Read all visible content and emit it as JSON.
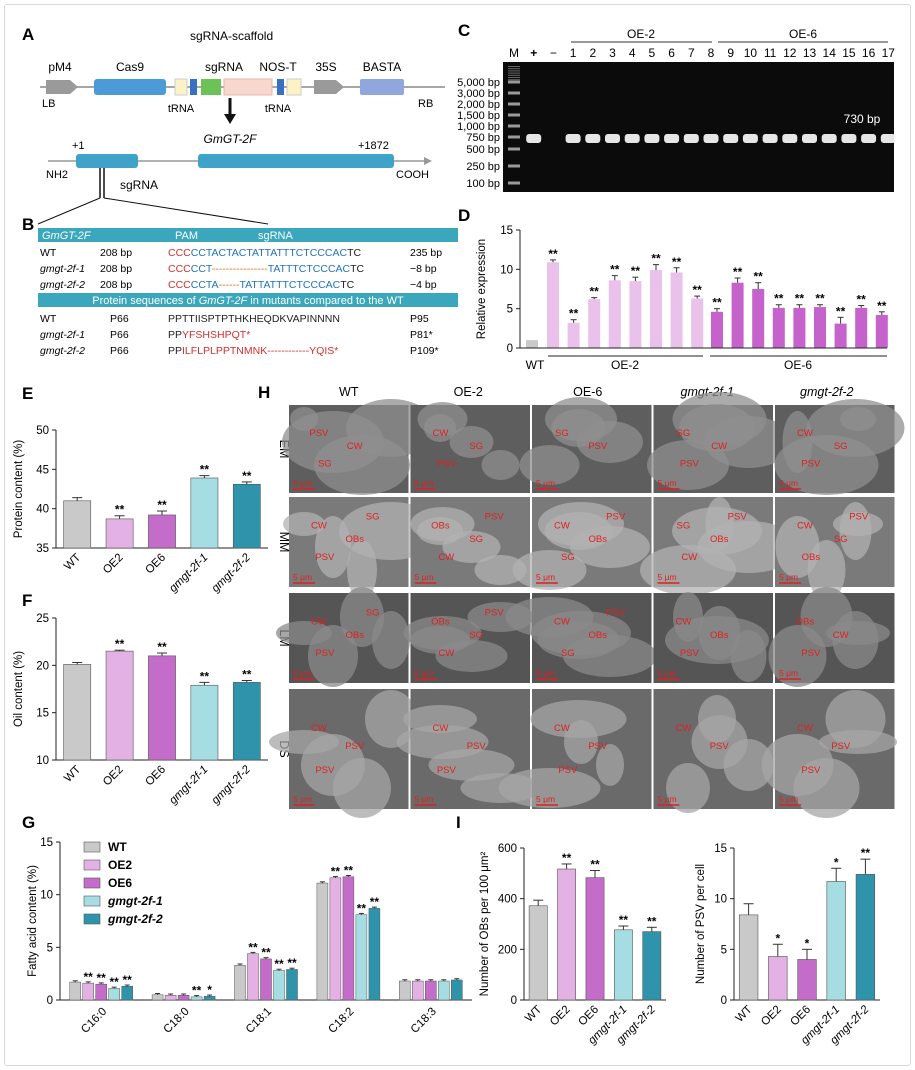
{
  "panelA": {
    "letter": "A",
    "scaffold": "sgRNA-scaffold",
    "labels": [
      "pM4",
      "Cas9",
      "sgRNA",
      "NOS-T",
      "35S",
      "BASTA"
    ],
    "lb": "LB",
    "rb": "RB",
    "trna1": "tRNA",
    "trna2": "tRNA",
    "gene": "GmGT-2F",
    "start": "+1",
    "end": "+1872",
    "nh2": "NH2",
    "cooh": "COOH",
    "sgrna": "sgRNA"
  },
  "panelB": {
    "letter": "B",
    "hdr_gene": "GmGT-2F",
    "hdr_pam": "PAM",
    "hdr_sgrna": "sgRNA",
    "rows": [
      {
        "name": "WT",
        "bp": "208 bp",
        "parts": [
          [
            "CCC",
            "#d32f2f"
          ],
          [
            "CCTACTACTATTATTTCTCCCAC",
            "#1e73be"
          ],
          [
            "TC",
            "#222"
          ]
        ],
        "end": "235 bp"
      },
      {
        "name": "gmgt-2f-1",
        "bp": "208 bp",
        "parts": [
          [
            "CCC",
            "#d32f2f"
          ],
          [
            "CCT",
            "#1e73be"
          ],
          [
            "----------------",
            "#e07020"
          ],
          [
            "TATTTCTCCCAC",
            "#1e73be"
          ],
          [
            "TC",
            "#222"
          ]
        ],
        "end": "−8 bp"
      },
      {
        "name": "gmgt-2f-2",
        "bp": "208 bp",
        "parts": [
          [
            "CCC",
            "#d32f2f"
          ],
          [
            "CCTA",
            "#1e73be"
          ],
          [
            "------",
            "#e07020"
          ],
          [
            "TATTATTTCTCCCAC",
            "#1e73be"
          ],
          [
            "TC",
            "#222"
          ]
        ],
        "end": "−4 bp"
      }
    ],
    "protein_header_pre": "Protein sequences of ",
    "protein_header_gene": "GmGT-2F",
    "protein_header_post": " in mutants compared to the WT",
    "prot_rows": [
      {
        "name": "WT",
        "start": "P66",
        "parts": [
          [
            "PPTTIISPTPTHKHEQDKVAPINNNN",
            "#222"
          ]
        ],
        "end": "P95"
      },
      {
        "name": "gmgt-2f-1",
        "start": "P66",
        "parts": [
          [
            "PP",
            "#222"
          ],
          [
            "YFSHSHPQT*",
            "#d32f2f"
          ]
        ],
        "end": "P81*"
      },
      {
        "name": "gmgt-2f-2",
        "start": "P66",
        "parts": [
          [
            "PP",
            "#222"
          ],
          [
            "ILFLPLPPTNMNK------------YQIS*",
            "#d32f2f"
          ]
        ],
        "end": "P109*"
      }
    ]
  },
  "panelC": {
    "letter": "C",
    "group1": "OE-2",
    "group2": "OE-6",
    "lanes": [
      "M",
      "+",
      "−",
      "1",
      "2",
      "3",
      "4",
      "5",
      "6",
      "7",
      "8",
      "9",
      "10",
      "11",
      "12",
      "13",
      "14",
      "15",
      "16",
      "17"
    ],
    "ladder": [
      "5,000 bp",
      "3,000 bp",
      "2,000 bp",
      "1,500 bp",
      "1,000 bp",
      "750 bp",
      "500 bp",
      "250 bp",
      "100 bp"
    ],
    "band": "730 bp"
  },
  "colors": {
    "wt": "#c9c9c9",
    "oe2": "#e3b1e3",
    "oe6": "#c46cc9",
    "m1": "#a6dde3",
    "m2": "#2f94ab",
    "red": "#d32f2f",
    "blue": "#1e73be",
    "teal_bar": "#2b94ad",
    "oe2_light": "#e9c1ea",
    "oe6_dark": "#c662cb"
  },
  "panelH": {
    "letter": "H",
    "cols": [
      "WT",
      "OE-2",
      "OE-6",
      "gmgt-2f-1",
      "gmgt-2f-2"
    ],
    "rows": [
      "EM",
      "MM",
      "LM",
      "DS"
    ],
    "scale": "5 μm",
    "cells": [
      [
        [
          "PSV",
          "CW",
          "SG"
        ],
        [
          "CW",
          "SG",
          "PSV"
        ],
        [
          "SG",
          "PSV"
        ],
        [
          "SG",
          "CW",
          "PSV"
        ],
        [
          "CW",
          "SG",
          "PSV"
        ]
      ],
      [
        [
          "CW",
          "OBs",
          "PSV",
          "SG"
        ],
        [
          "OBs",
          "SG",
          "CW",
          "PSV"
        ],
        [
          "CW",
          "OBs",
          "SG",
          "PSV"
        ],
        [
          "SG",
          "OBs",
          "CW",
          "PSV"
        ],
        [
          "CW",
          "SG",
          "OBs",
          "PSV"
        ]
      ],
      [
        [
          "CW",
          "OBs",
          "PSV",
          "SG"
        ],
        [
          "OBs",
          "SG",
          "CW",
          "PSV"
        ],
        [
          "CW",
          "OBs",
          "SG",
          "PSV"
        ],
        [
          "CW",
          "OBs",
          "PSV"
        ],
        [
          "OBs",
          "CW",
          "PSV"
        ]
      ],
      [
        [
          "CW",
          "PSV",
          "PSV"
        ],
        [
          "CW",
          "PSV",
          "PSV"
        ],
        [
          "CW",
          "PSV",
          "PSV"
        ],
        [
          "CW",
          "PSV"
        ],
        [
          "CW",
          "PSV",
          "PSV"
        ]
      ]
    ]
  },
  "chart_data": [
    {
      "panel": "D",
      "type": "bar",
      "ylabel": "Relative expression",
      "ylim": [
        0,
        15
      ],
      "yticks": [
        0,
        5,
        10,
        15
      ],
      "group_labels": [
        "WT",
        "OE-2",
        "OE-6"
      ],
      "series": [
        {
          "name": "WT",
          "values": [
            1.0
          ],
          "errors": [
            0
          ],
          "sig": [
            ""
          ]
        },
        {
          "name": "OE-2",
          "values": [
            10.9,
            3.2,
            6.2,
            8.6,
            8.5,
            9.9,
            9.6,
            6.3
          ],
          "errors": [
            0.3,
            0.4,
            0.2,
            0.6,
            0.5,
            0.7,
            0.6,
            0.3
          ],
          "sig": [
            "**",
            "**",
            "**",
            "**",
            "**",
            "**",
            "**",
            "**"
          ]
        },
        {
          "name": "OE-6",
          "values": [
            4.6,
            8.3,
            7.5,
            5.1,
            5.1,
            5.2,
            3.1,
            5.1,
            4.2
          ],
          "errors": [
            0.4,
            0.6,
            0.8,
            0.4,
            0.4,
            0.3,
            0.8,
            0.3,
            0.4
          ],
          "sig": [
            "**",
            "**",
            "**",
            "**",
            "**",
            "**",
            "**",
            "**",
            "**"
          ]
        }
      ]
    },
    {
      "panel": "E",
      "type": "bar",
      "ylabel": "Protein content (%)",
      "ylim": [
        35,
        50
      ],
      "yticks": [
        35,
        40,
        45,
        50
      ],
      "categories": [
        "WT",
        "OE2",
        "OE6",
        "gmgt-2f-1",
        "gmgt-2f-2"
      ],
      "values": [
        41.0,
        38.7,
        39.2,
        43.9,
        43.1
      ],
      "errors": [
        0.4,
        0.4,
        0.5,
        0.3,
        0.3
      ],
      "sig": [
        "",
        "**",
        "**",
        "**",
        "**"
      ]
    },
    {
      "panel": "F",
      "type": "bar",
      "ylabel": "Oil content (%)",
      "ylim": [
        10,
        25
      ],
      "yticks": [
        10,
        15,
        20,
        25
      ],
      "categories": [
        "WT",
        "OE2",
        "OE6",
        "gmgt-2f-1",
        "gmgt-2f-2"
      ],
      "values": [
        20.1,
        21.5,
        21.0,
        17.9,
        18.2
      ],
      "errors": [
        0.2,
        0.1,
        0.3,
        0.3,
        0.2
      ],
      "sig": [
        "",
        "**",
        "**",
        "**",
        "**"
      ]
    },
    {
      "panel": "G",
      "type": "bar",
      "ylabel": "Fatty acid content (%)",
      "ylim": [
        0,
        15
      ],
      "yticks": [
        0,
        5,
        10,
        15
      ],
      "categories": [
        "C16:0",
        "C18:0",
        "C18:1",
        "C18:2",
        "C18:3"
      ],
      "series": [
        {
          "name": "WT",
          "values": [
            1.7,
            0.5,
            3.3,
            11.1,
            1.8
          ],
          "sig": [
            "",
            "",
            "",
            "",
            ""
          ]
        },
        {
          "name": "OE2",
          "values": [
            1.6,
            0.45,
            4.4,
            11.6,
            1.8
          ],
          "sig": [
            "**",
            "",
            "**",
            "**",
            ""
          ]
        },
        {
          "name": "OE6",
          "values": [
            1.5,
            0.45,
            3.9,
            11.7,
            1.8
          ],
          "sig": [
            "**",
            "",
            "**",
            "**",
            ""
          ]
        },
        {
          "name": "gmgt-2f-1",
          "values": [
            1.1,
            0.3,
            2.8,
            8.1,
            1.8
          ],
          "sig": [
            "**",
            "**",
            "**",
            "**",
            ""
          ]
        },
        {
          "name": "gmgt-2f-2",
          "values": [
            1.3,
            0.35,
            2.9,
            8.7,
            1.9
          ],
          "sig": [
            "**",
            "*",
            "**",
            "**",
            ""
          ]
        }
      ]
    },
    {
      "panel": "I1",
      "type": "bar",
      "ylabel": "Number of OBs per 100 μm²",
      "ylim": [
        0,
        600
      ],
      "yticks": [
        0,
        200,
        400,
        600
      ],
      "categories": [
        "WT",
        "OE2",
        "OE6",
        "gmgt-2f-1",
        "gmgt-2f-2"
      ],
      "values": [
        372,
        517,
        483,
        277,
        270
      ],
      "errors": [
        22,
        20,
        28,
        15,
        17
      ],
      "sig": [
        "",
        "**",
        "**",
        "**",
        "**"
      ]
    },
    {
      "panel": "I2",
      "type": "bar",
      "ylabel": "Number of PSV per cell",
      "ylim": [
        0,
        15
      ],
      "yticks": [
        0,
        5,
        10,
        15
      ],
      "categories": [
        "WT",
        "OE2",
        "OE6",
        "gmgt-2f-1",
        "gmgt-2f-2"
      ],
      "values": [
        8.4,
        4.3,
        4.0,
        11.7,
        12.4
      ],
      "errors": [
        1.1,
        1.2,
        1.0,
        1.3,
        1.5
      ],
      "sig": [
        "",
        "*",
        "*",
        "*",
        "**"
      ]
    }
  ],
  "letters": {
    "D": "D",
    "E": "E",
    "F": "F",
    "G": "G",
    "I": "I"
  }
}
